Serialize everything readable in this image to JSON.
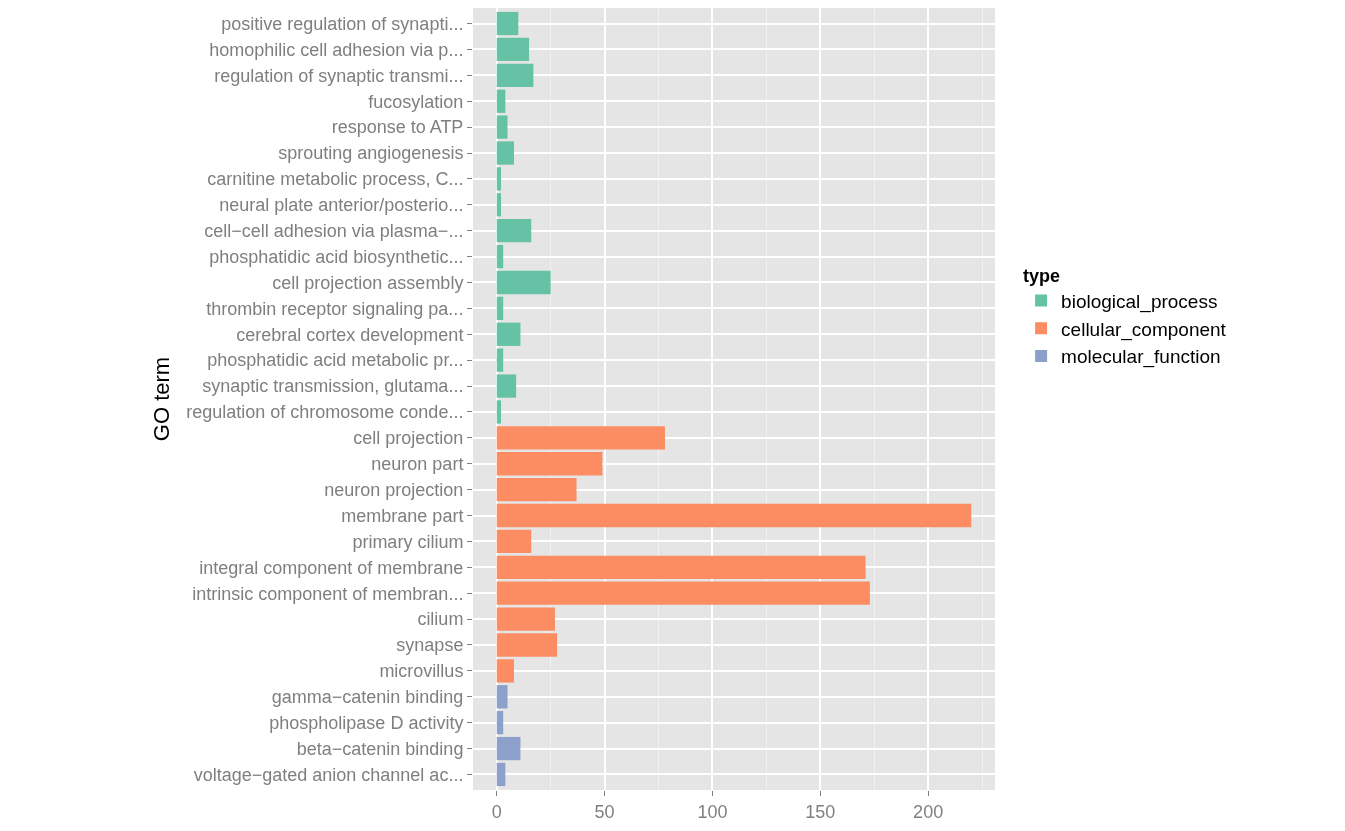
{
  "chart_data": {
    "type": "bar",
    "orientation": "horizontal",
    "ylabel": "GO term",
    "legend_title": "type",
    "legend": "right",
    "grid": true,
    "categories": [
      "positive regulation of synapti...",
      "homophilic cell adhesion via p...",
      "regulation of synaptic transmi...",
      "fucosylation",
      "response to ATP",
      "sprouting angiogenesis",
      "carnitine metabolic process, C...",
      "neural plate anterior/posterio...",
      "cell−cell adhesion via plasma−...",
      "phosphatidic acid biosynthetic...",
      "cell projection assembly",
      "thrombin receptor signaling pa...",
      "cerebral cortex development",
      "phosphatidic acid metabolic pr...",
      "synaptic transmission, glutama...",
      "regulation of chromosome conde...",
      "cell projection",
      "neuron part",
      "neuron projection",
      "membrane part",
      "primary cilium",
      "integral component of membrane",
      "intrinsic component of membran...",
      "cilium",
      "synapse",
      "microvillus",
      "gamma−catenin binding",
      "phospholipase D activity",
      "beta−catenin binding",
      "voltage−gated anion channel ac..."
    ],
    "series": [
      {
        "name": "biological_process",
        "color": "#66c2a5",
        "values": [
          10,
          15,
          17,
          4,
          5,
          8,
          2,
          2,
          16,
          3,
          25,
          3,
          11,
          3,
          9,
          2,
          null,
          null,
          null,
          null,
          null,
          null,
          null,
          null,
          null,
          null,
          null,
          null,
          null,
          null
        ]
      },
      {
        "name": "cellular_component",
        "color": "#fc8d62",
        "values": [
          null,
          null,
          null,
          null,
          null,
          null,
          null,
          null,
          null,
          null,
          null,
          null,
          null,
          null,
          null,
          null,
          78,
          49,
          37,
          220,
          16,
          171,
          173,
          27,
          28,
          8,
          null,
          null,
          null,
          null
        ]
      },
      {
        "name": "molecular_function",
        "color": "#8da0cb",
        "values": [
          null,
          null,
          null,
          null,
          null,
          null,
          null,
          null,
          null,
          null,
          null,
          null,
          null,
          null,
          null,
          null,
          null,
          null,
          null,
          null,
          null,
          null,
          null,
          null,
          null,
          null,
          5,
          3,
          11,
          4
        ]
      }
    ],
    "xlim": [
      -11,
      231
    ],
    "xticks": [
      0,
      50,
      100,
      150,
      200
    ]
  }
}
